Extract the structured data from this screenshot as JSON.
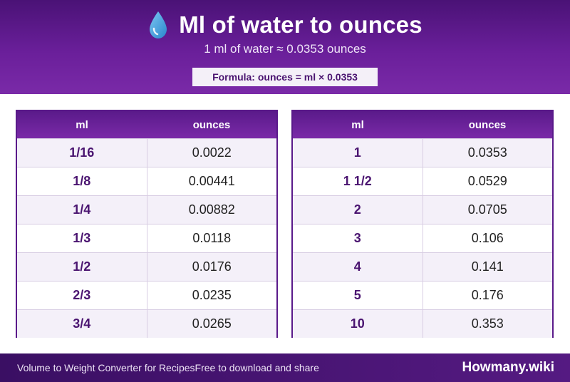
{
  "header": {
    "title": "Ml of water to ounces",
    "subtitle": "1 ml of water ≈ 0.0353 ounces",
    "formula": "Formula: ounces = ml × 0.0353",
    "icon": "water-drop-icon"
  },
  "tables": [
    {
      "col_ml": "ml",
      "col_oz": "ounces",
      "rows": [
        {
          "ml": "1/16",
          "oz": "0.0022"
        },
        {
          "ml": "1/8",
          "oz": "0.00441"
        },
        {
          "ml": "1/4",
          "oz": "0.00882"
        },
        {
          "ml": "1/3",
          "oz": "0.0118"
        },
        {
          "ml": "1/2",
          "oz": "0.0176"
        },
        {
          "ml": "2/3",
          "oz": "0.0235"
        },
        {
          "ml": "3/4",
          "oz": "0.0265"
        }
      ]
    },
    {
      "col_ml": "ml",
      "col_oz": "ounces",
      "rows": [
        {
          "ml": "1",
          "oz": "0.0353"
        },
        {
          "ml": "1 1/2",
          "oz": "0.0529"
        },
        {
          "ml": "2",
          "oz": "0.0705"
        },
        {
          "ml": "3",
          "oz": "0.106"
        },
        {
          "ml": "4",
          "oz": "0.141"
        },
        {
          "ml": "5",
          "oz": "0.176"
        },
        {
          "ml": "10",
          "oz": "0.353"
        }
      ]
    }
  ],
  "footer": {
    "left": "Volume to Weight Converter for Recipes",
    "middle": "Free to download and share",
    "brand": "Howmany.wiki"
  },
  "colors": {
    "accent": "#6a1f9a",
    "header_dark": "#4a1276",
    "drop": "#3fa4e0"
  }
}
